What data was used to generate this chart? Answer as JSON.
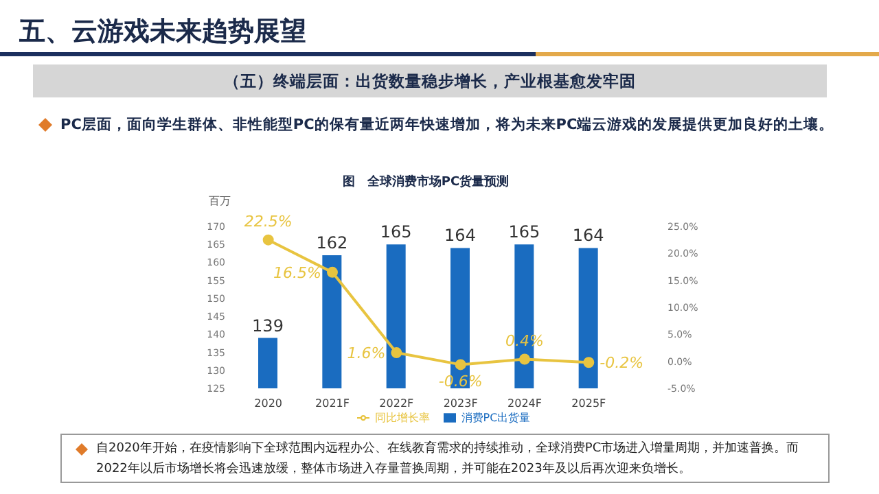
{
  "chart_data": {
    "type": "bar",
    "title": "图　全球消费市场PC货量预测",
    "subtitle": "（五）终端层面：出货数量稳步增长，产业根基愈发牢固",
    "annotations": [
      "五、云游戏未来趋势展望",
      "PC层面，面向学生群体、非性能型PC的保有量近两年快速增加，将为未来PC端云游戏的发展提供更加良好的土壤。",
      "自2020年开始，在疫情影响下全球范围内远程办公、在线教育需求的持续推动，全球消费PC市场进入增量周期，并加速普换。而2022年以后市场增长将会迅速放缓，整体市场进入存量普换周期，并可能在2023年及以后再次迎来负增长。"
    ],
    "ylabel": "百万",
    "categories": [
      "2020",
      "2021F",
      "2022F",
      "2023F",
      "2024F",
      "2025F"
    ],
    "series": [
      {
        "name": "消费PC出货量",
        "color": "#1a6cc0",
        "values": [
          139,
          162,
          165,
          164,
          165,
          164
        ],
        "value_labels": [
          "139",
          "162",
          "165",
          "164",
          "165",
          "164"
        ]
      },
      {
        "name": "同比增长率",
        "type": "line",
        "axis": "y2",
        "color": "#e8c440",
        "values": [
          22.5,
          16.5,
          1.6,
          -0.6,
          0.4,
          -0.2
        ],
        "value_labels": [
          "22.5%",
          "16.5%",
          "1.6%",
          "-0.6%",
          "0.4%",
          "-0.2%"
        ]
      }
    ],
    "ylim": [
      125,
      170
    ],
    "yticks": [
      125,
      130,
      135,
      140,
      145,
      150,
      155,
      160,
      165,
      170
    ],
    "y2lim": [
      -5,
      25
    ],
    "y2ticks": [
      {
        "value": -5,
        "label": "-5.0%"
      },
      {
        "value": 0,
        "label": "0.0%"
      },
      {
        "value": 5,
        "label": "5.0%"
      },
      {
        "value": 10,
        "label": "10.0%"
      },
      {
        "value": 15,
        "label": "15.0%"
      },
      {
        "value": 20,
        "label": "20.0%"
      },
      {
        "value": 25,
        "label": "25.0%"
      }
    ],
    "marker": "circle",
    "legend": "bottom",
    "grid": false
  }
}
